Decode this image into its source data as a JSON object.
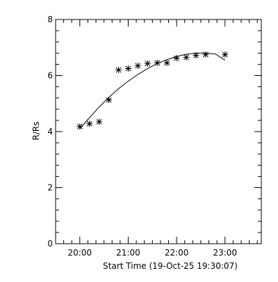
{
  "chart_data": {
    "type": "scatter",
    "xlabel": "Start Time (19-Oct-25 19:30:07)",
    "ylabel": "R/Rs",
    "x_range_hours": [
      19.5,
      23.75
    ],
    "ylim": [
      0,
      8
    ],
    "x_major_ticks_hours": [
      20,
      21,
      22,
      23
    ],
    "x_tick_labels": [
      "20:00",
      "21:00",
      "22:00",
      "23:00"
    ],
    "y_major_ticks": [
      0,
      2,
      4,
      6,
      8
    ],
    "y_tick_labels": [
      "0",
      "2",
      "4",
      "6",
      "8"
    ],
    "grid": false,
    "series": [
      {
        "marker": "asterisk",
        "x_hours": [
          20.0,
          20.2,
          20.4,
          20.6,
          20.8,
          21.0,
          21.2,
          21.4,
          21.6,
          21.8,
          22.0,
          22.2,
          22.4,
          22.6,
          23.0
        ],
        "values": [
          4.18,
          4.28,
          4.35,
          5.13,
          6.2,
          6.25,
          6.35,
          6.43,
          6.45,
          6.45,
          6.62,
          6.65,
          6.72,
          6.75,
          6.75
        ]
      },
      {
        "style": "line",
        "x_hours": [
          20.0,
          20.2,
          20.4,
          20.6,
          20.8,
          21.0,
          21.2,
          21.4,
          21.6,
          21.8,
          22.0,
          22.2,
          22.4,
          22.6,
          22.8,
          23.0
        ],
        "values": [
          4.1,
          4.5,
          4.88,
          5.22,
          5.53,
          5.8,
          6.04,
          6.25,
          6.43,
          6.57,
          6.68,
          6.76,
          6.8,
          6.8,
          6.77,
          6.55
        ]
      }
    ]
  }
}
